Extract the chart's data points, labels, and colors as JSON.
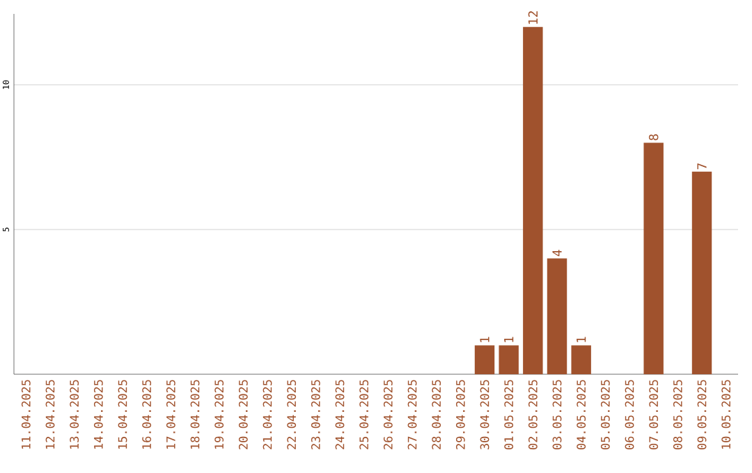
{
  "chart_data": {
    "type": "bar",
    "categories": [
      "11.04.2025",
      "12.04.2025",
      "13.04.2025",
      "14.04.2025",
      "15.04.2025",
      "16.04.2025",
      "17.04.2025",
      "18.04.2025",
      "19.04.2025",
      "20.04.2025",
      "21.04.2025",
      "22.04.2025",
      "23.04.2025",
      "24.04.2025",
      "25.04.2025",
      "26.04.2025",
      "27.04.2025",
      "28.04.2025",
      "29.04.2025",
      "30.04.2025",
      "01.05.2025",
      "02.05.2025",
      "03.05.2025",
      "04.05.2025",
      "05.05.2025",
      "06.05.2025",
      "07.05.2025",
      "08.05.2025",
      "09.05.2025",
      "10.05.2025"
    ],
    "values": [
      0,
      0,
      0,
      0,
      0,
      0,
      0,
      0,
      0,
      0,
      0,
      0,
      0,
      0,
      0,
      0,
      0,
      0,
      0,
      1,
      1,
      12,
      4,
      1,
      0,
      0,
      8,
      0,
      7,
      0
    ],
    "value_labels": [
      null,
      null,
      null,
      null,
      null,
      null,
      null,
      null,
      null,
      null,
      null,
      null,
      null,
      null,
      null,
      null,
      null,
      null,
      null,
      "1",
      "1",
      "12",
      "4",
      "1",
      null,
      null,
      "8",
      null,
      "7",
      null
    ],
    "color": "#a0522d",
    "ylim": [
      0,
      12.45
    ],
    "yticks": [
      5,
      10
    ],
    "grid": "y"
  }
}
